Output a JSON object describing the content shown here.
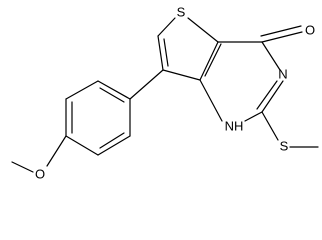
{
  "molecule": {
    "atoms": [
      {
        "label": "S"
      },
      {
        "label": "O"
      },
      {
        "label": "N"
      },
      {
        "label": "NH"
      },
      {
        "label": "S"
      },
      {
        "label": "O"
      }
    ]
  }
}
